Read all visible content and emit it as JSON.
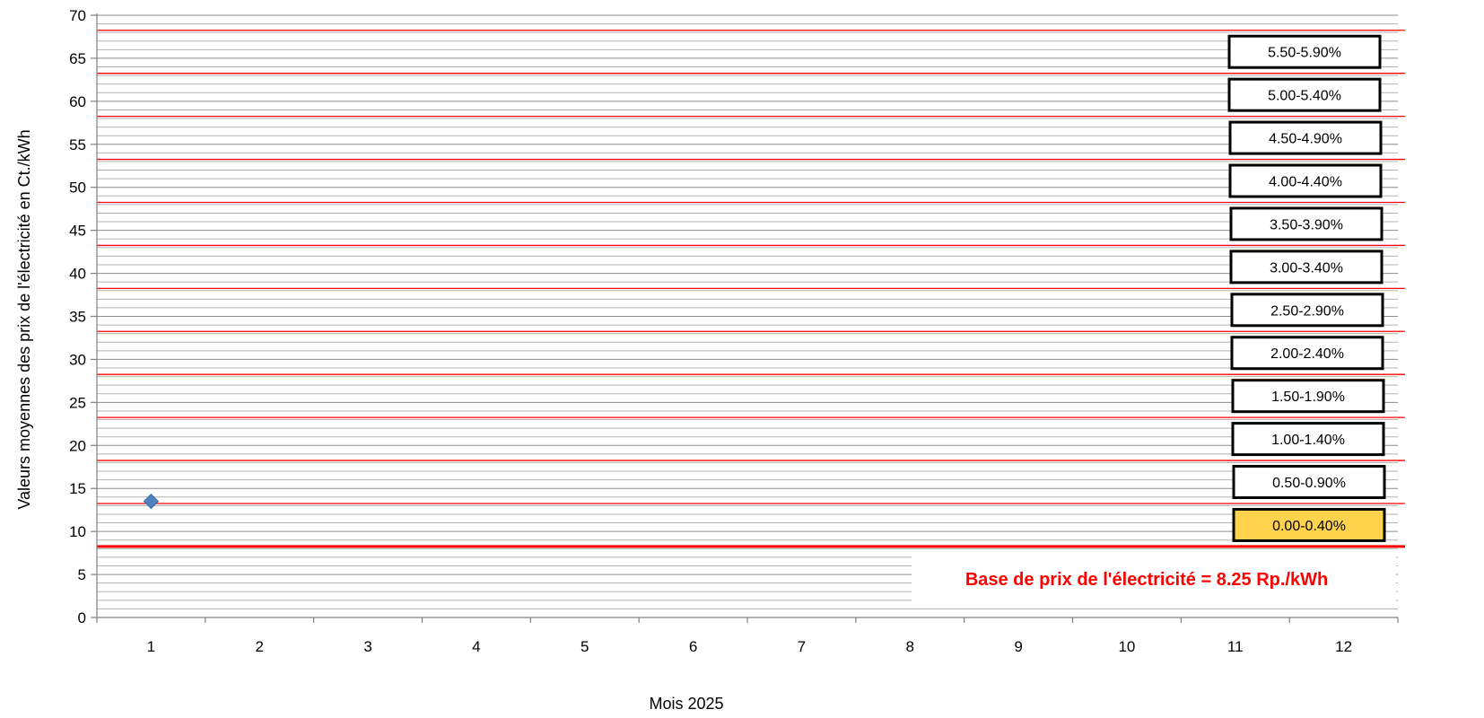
{
  "chart_data": {
    "type": "scatter",
    "xlabel": "Mois 2025",
    "ylabel": "Valeurs moyennes des prix de l'électricité en Ct./kWh",
    "xlim": [
      0.5,
      12.5
    ],
    "ylim": [
      0,
      70
    ],
    "x_ticks": [
      "1",
      "2",
      "3",
      "4",
      "5",
      "6",
      "7",
      "8",
      "9",
      "10",
      "11",
      "12"
    ],
    "y_ticks": [
      "0",
      "5",
      "10",
      "15",
      "20",
      "25",
      "30",
      "35",
      "40",
      "45",
      "50",
      "55",
      "60",
      "65",
      "70"
    ],
    "minor_gridline_step": 1,
    "series": [
      {
        "x": [
          1
        ],
        "y": [
          13.5
        ],
        "marker": "diamond",
        "color": "#4f81bd"
      }
    ],
    "base_line": {
      "y": 8.25,
      "color": "#ff0000"
    },
    "bands": [
      {
        "label": "0.00-0.40%",
        "boundary": 13.25,
        "highlight": true
      },
      {
        "label": "0.50-0.90%",
        "boundary": 18.25
      },
      {
        "label": "1.00-1.40%",
        "boundary": 23.25
      },
      {
        "label": "1.50-1.90%",
        "boundary": 28.25
      },
      {
        "label": "2.00-2.40%",
        "boundary": 33.25
      },
      {
        "label": "2.50-2.90%",
        "boundary": 38.25
      },
      {
        "label": "3.00-3.40%",
        "boundary": 43.25
      },
      {
        "label": "3.50-3.90%",
        "boundary": 48.25
      },
      {
        "label": "4.00-4.40%",
        "boundary": 53.25
      },
      {
        "label": "4.50-4.90%",
        "boundary": 58.25
      },
      {
        "label": "5.00-5.40%",
        "boundary": 63.25
      },
      {
        "label": "5.50-5.90%",
        "boundary": 68.25
      }
    ],
    "annotation": "Base de prix de l'électricité = 8.25 Rp./kWh",
    "annotation_color": "#ff0000",
    "highlight_color": "#ffd34e",
    "grid": true,
    "legend": "none"
  }
}
